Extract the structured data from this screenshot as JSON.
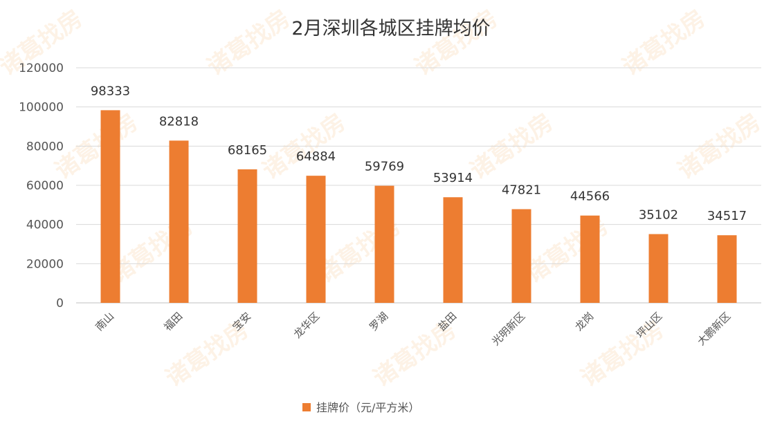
{
  "watermark": "诸葛找房",
  "colors": {
    "bar": "#ED7D31",
    "grid": "#D9D9D9",
    "watermark": "#F4B46A"
  },
  "chart_data": {
    "type": "bar",
    "title": "2月深圳各城区挂牌均价",
    "categories": [
      "南山",
      "福田",
      "宝安",
      "龙华区",
      "罗湖",
      "盐田",
      "光明新区",
      "龙岗",
      "坪山区",
      "大鹏新区"
    ],
    "series": [
      {
        "name": "挂牌价（元/平方米）",
        "values": [
          98333,
          82818,
          68165,
          64884,
          59769,
          53914,
          47821,
          44566,
          35102,
          34517
        ]
      }
    ],
    "xlabel": "",
    "ylabel": "",
    "ylim": [
      0,
      120000
    ],
    "yticks": [
      0,
      20000,
      40000,
      60000,
      80000,
      100000,
      120000
    ],
    "grid": true,
    "legend": "bottom-center",
    "data_labels": true
  }
}
